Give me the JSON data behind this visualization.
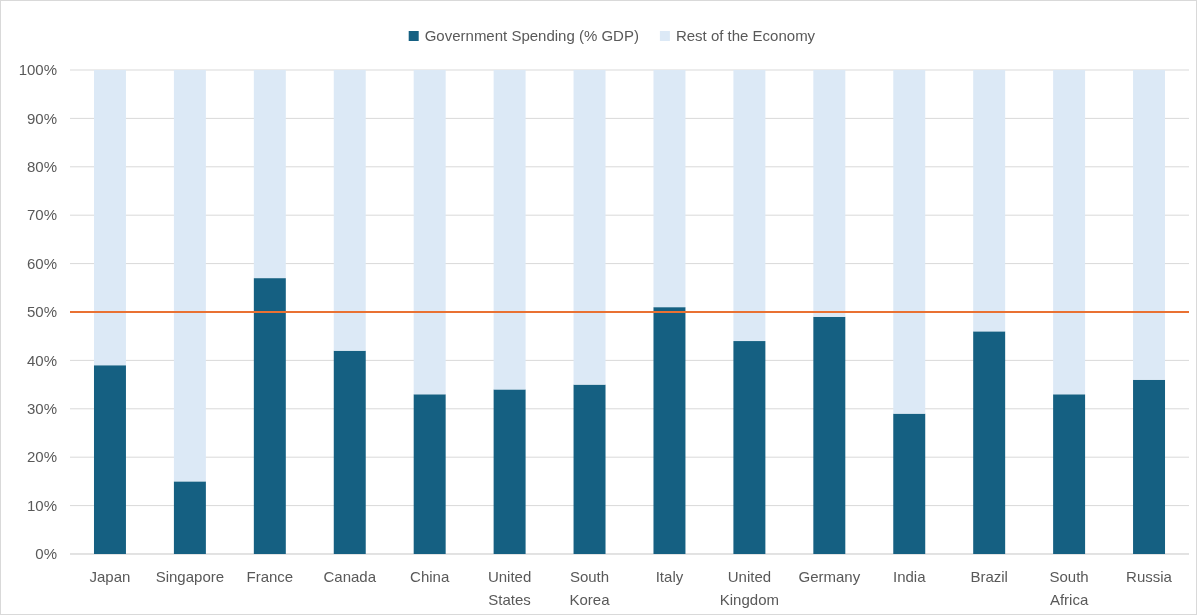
{
  "chart_data": {
    "type": "bar",
    "stacked": true,
    "categories": [
      "Japan",
      "Singapore",
      "France",
      "Canada",
      "China",
      "United States",
      "South Korea",
      "Italy",
      "United Kingdom",
      "Germany",
      "India",
      "Brazil",
      "South Africa",
      "Russia"
    ],
    "series": [
      {
        "name": "Government Spending (% GDP)",
        "color": "#156082",
        "values": [
          39,
          15,
          57,
          42,
          33,
          34,
          35,
          51,
          44,
          49,
          29,
          46,
          33,
          36
        ]
      },
      {
        "name": "Rest of the Economy",
        "color": "#dce9f6",
        "values": [
          61,
          85,
          43,
          58,
          67,
          66,
          65,
          49,
          56,
          51,
          71,
          54,
          67,
          64
        ]
      }
    ],
    "ylim": [
      0,
      100
    ],
    "yticks": [
      {
        "value": 0,
        "label": "0%"
      },
      {
        "value": 10,
        "label": "10%"
      },
      {
        "value": 20,
        "label": "20%"
      },
      {
        "value": 30,
        "label": "30%"
      },
      {
        "value": 40,
        "label": "40%"
      },
      {
        "value": 50,
        "label": "50%"
      },
      {
        "value": 60,
        "label": "60%"
      },
      {
        "value": 70,
        "label": "70%"
      },
      {
        "value": 80,
        "label": "80%"
      },
      {
        "value": 90,
        "label": "90%"
      },
      {
        "value": 100,
        "label": "100%"
      }
    ],
    "grid": "y",
    "legend": "top",
    "ref_lines": [
      {
        "axis": "y",
        "value": 50,
        "color": "#e97132"
      }
    ]
  }
}
